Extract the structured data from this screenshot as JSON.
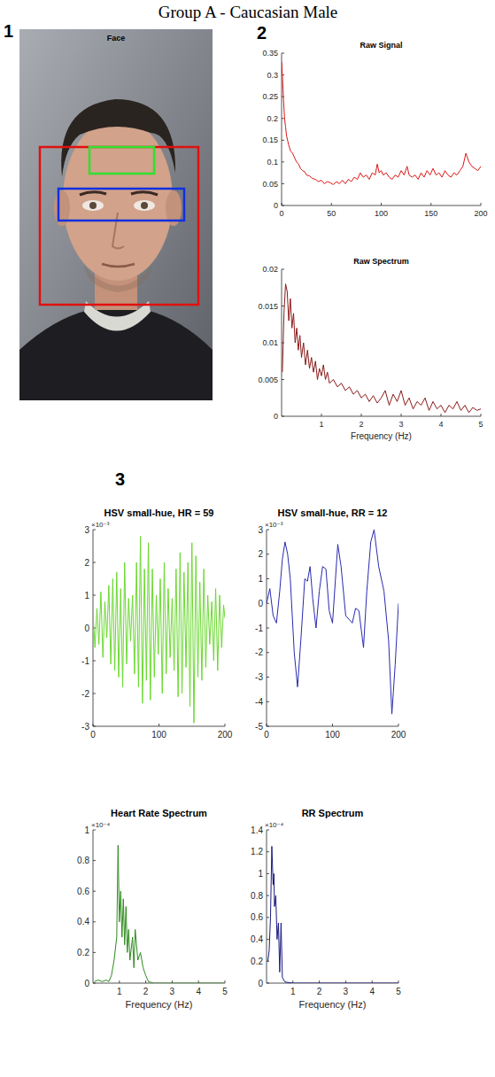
{
  "title": "Group A - Caucasian Male",
  "panel_labels": [
    "1",
    "2",
    "3"
  ],
  "face_panel": {
    "title": "Face"
  },
  "chart_data": [
    {
      "type": "line",
      "title": "Raw Signal",
      "color": "#dd1515",
      "xlim": [
        0,
        200
      ],
      "xticks": [
        0,
        50,
        100,
        150,
        200
      ],
      "ylim": [
        0,
        0.35
      ],
      "yticks": [
        0,
        0.05,
        0.1,
        0.15,
        0.2,
        0.25,
        0.3,
        0.35
      ],
      "x": [
        0,
        1,
        2,
        3,
        4,
        5,
        7,
        9,
        11,
        13,
        15,
        17,
        19,
        21,
        23,
        25,
        28,
        31,
        34,
        37,
        40,
        43,
        46,
        49,
        52,
        55,
        58,
        61,
        64,
        67,
        70,
        73,
        76,
        79,
        82,
        85,
        88,
        91,
        94,
        96,
        98,
        100,
        102,
        105,
        108,
        111,
        114,
        117,
        120,
        123,
        126,
        128,
        131,
        134,
        137,
        140,
        143,
        146,
        149,
        152,
        155,
        158,
        161,
        164,
        167,
        170,
        173,
        176,
        179,
        182,
        185,
        188,
        191,
        194,
        197,
        200
      ],
      "values": [
        0.33,
        0.29,
        0.24,
        0.2,
        0.18,
        0.16,
        0.14,
        0.125,
        0.12,
        0.11,
        0.1,
        0.095,
        0.085,
        0.08,
        0.078,
        0.07,
        0.068,
        0.062,
        0.06,
        0.055,
        0.058,
        0.05,
        0.055,
        0.052,
        0.048,
        0.055,
        0.05,
        0.058,
        0.05,
        0.06,
        0.055,
        0.065,
        0.06,
        0.075,
        0.065,
        0.07,
        0.06,
        0.075,
        0.07,
        0.095,
        0.075,
        0.08,
        0.07,
        0.075,
        0.065,
        0.06,
        0.07,
        0.065,
        0.08,
        0.07,
        0.09,
        0.07,
        0.065,
        0.07,
        0.06,
        0.075,
        0.065,
        0.08,
        0.07,
        0.085,
        0.07,
        0.075,
        0.065,
        0.08,
        0.07,
        0.065,
        0.075,
        0.07,
        0.08,
        0.09,
        0.12,
        0.1,
        0.09,
        0.085,
        0.08,
        0.09
      ]
    },
    {
      "type": "line",
      "title": "Raw Spectrum",
      "x_label": "Frequency (Hz)",
      "color": "#8b1a1a",
      "xlim": [
        0,
        5
      ],
      "xticks": [
        1,
        2,
        3,
        4,
        5
      ],
      "ylim": [
        0,
        0.02
      ],
      "yticks": [
        0,
        0.005,
        0.01,
        0.015,
        0.02
      ],
      "x": [
        0.02,
        0.06,
        0.1,
        0.14,
        0.18,
        0.22,
        0.26,
        0.3,
        0.34,
        0.38,
        0.42,
        0.46,
        0.5,
        0.55,
        0.6,
        0.65,
        0.7,
        0.75,
        0.8,
        0.85,
        0.9,
        0.95,
        1.0,
        1.05,
        1.1,
        1.15,
        1.2,
        1.3,
        1.4,
        1.5,
        1.6,
        1.7,
        1.8,
        1.9,
        2.0,
        2.1,
        2.2,
        2.3,
        2.4,
        2.5,
        2.6,
        2.7,
        2.8,
        2.9,
        3.0,
        3.1,
        3.2,
        3.3,
        3.4,
        3.5,
        3.6,
        3.7,
        3.8,
        3.9,
        4.0,
        4.1,
        4.2,
        4.3,
        4.4,
        4.5,
        4.6,
        4.7,
        4.8,
        4.9,
        5.0
      ],
      "values": [
        0.006,
        0.014,
        0.018,
        0.017,
        0.013,
        0.016,
        0.012,
        0.014,
        0.01,
        0.012,
        0.009,
        0.011,
        0.008,
        0.01,
        0.007,
        0.009,
        0.0065,
        0.008,
        0.006,
        0.0075,
        0.005,
        0.0065,
        0.0055,
        0.007,
        0.005,
        0.006,
        0.0045,
        0.005,
        0.004,
        0.0045,
        0.0035,
        0.004,
        0.003,
        0.0035,
        0.0025,
        0.003,
        0.002,
        0.0028,
        0.0018,
        0.0025,
        0.0035,
        0.0015,
        0.003,
        0.002,
        0.0035,
        0.0015,
        0.0025,
        0.001,
        0.002,
        0.0015,
        0.0025,
        0.0008,
        0.002,
        0.001,
        0.0015,
        0.0005,
        0.0015,
        0.001,
        0.002,
        0.0008,
        0.0015,
        0.0005,
        0.0012,
        0.0008,
        0.001
      ]
    },
    {
      "type": "line",
      "title": "HSV small-hue, HR = 59",
      "y_scale_label": "×10⁻³",
      "color": "#6ad830",
      "xlim": [
        0,
        200
      ],
      "xticks": [
        0,
        100,
        200
      ],
      "ylim": [
        -3,
        3
      ],
      "yticks": [
        -3,
        -2,
        -1,
        0,
        1,
        2,
        3
      ],
      "x": [
        0,
        3,
        6,
        9,
        12,
        15,
        18,
        21,
        24,
        27,
        30,
        33,
        36,
        39,
        42,
        45,
        48,
        51,
        54,
        57,
        60,
        63,
        66,
        69,
        72,
        75,
        78,
        81,
        84,
        87,
        90,
        93,
        96,
        99,
        102,
        105,
        108,
        111,
        114,
        117,
        120,
        123,
        126,
        129,
        132,
        135,
        138,
        141,
        144,
        147,
        150,
        153,
        156,
        159,
        162,
        165,
        168,
        171,
        174,
        177,
        180,
        183,
        186,
        189,
        192,
        195,
        198,
        200
      ],
      "values": [
        0.5,
        -0.6,
        0.6,
        -0.5,
        1.1,
        -0.9,
        0.8,
        -0.3,
        1.3,
        -1.1,
        1.5,
        -1.3,
        1.7,
        -1.5,
        1.2,
        -1.8,
        2.0,
        -1.1,
        0.9,
        -0.4,
        1.0,
        -1.4,
        2.0,
        -1.8,
        2.8,
        -2.3,
        1.8,
        -1.6,
        2.6,
        -2.2,
        1.8,
        -1.5,
        1.0,
        -0.8,
        1.5,
        -2.0,
        2.0,
        -1.4,
        1.2,
        -0.9,
        0.9,
        -1.3,
        1.8,
        -2.1,
        2.3,
        -2.0,
        1.7,
        -1.2,
        2.0,
        -2.4,
        2.6,
        -2.9,
        2.2,
        -1.5,
        1.4,
        -1.6,
        1.8,
        -1.2,
        1.0,
        -0.5,
        0.8,
        -1.0,
        1.2,
        -1.3,
        1.0,
        -0.6,
        0.7,
        0.3
      ]
    },
    {
      "type": "line",
      "title": "HSV small-hue, RR = 12",
      "y_scale_label": "×10⁻³",
      "color": "#2a2ab0",
      "xlim": [
        0,
        200
      ],
      "xticks": [
        0,
        100,
        200
      ],
      "ylim": [
        -5,
        3
      ],
      "yticks": [
        -5,
        -4,
        -3,
        -2,
        -1,
        0,
        1,
        2,
        3
      ],
      "x": [
        0,
        5,
        10,
        15,
        20,
        24,
        28,
        32,
        36,
        42,
        47,
        52,
        58,
        62,
        66,
        70,
        75,
        80,
        85,
        90,
        95,
        100,
        108,
        113,
        120,
        130,
        135,
        140,
        147,
        152,
        158,
        163,
        170,
        178,
        185,
        190,
        195,
        200
      ],
      "values": [
        0,
        0.6,
        -0.5,
        -0.8,
        0.5,
        1.8,
        2.5,
        2.0,
        1.0,
        -2.0,
        -3.4,
        -1.5,
        1.0,
        0.9,
        1.5,
        0.2,
        -1.0,
        0.5,
        1.5,
        1.4,
        -0.3,
        -0.8,
        2.4,
        1.5,
        -0.5,
        -0.8,
        -0.2,
        -0.3,
        -1.8,
        0.5,
        2.5,
        3.0,
        1.5,
        0.5,
        -1.5,
        -4.5,
        -2.5,
        0
      ]
    },
    {
      "type": "line",
      "title": "Heart Rate Spectrum",
      "x_label": "Frequency (Hz)",
      "y_scale_label": "×10⁻⁴",
      "color": "#2e8b1e",
      "xlim": [
        0,
        5
      ],
      "xticks": [
        1,
        2,
        3,
        4,
        5
      ],
      "ylim": [
        0,
        1
      ],
      "yticks": [
        0,
        0.2,
        0.4,
        0.6,
        0.8,
        1
      ],
      "x": [
        0.05,
        0.2,
        0.35,
        0.5,
        0.6,
        0.7,
        0.8,
        0.9,
        0.95,
        1.0,
        1.05,
        1.1,
        1.15,
        1.2,
        1.25,
        1.3,
        1.35,
        1.4,
        1.5,
        1.55,
        1.6,
        1.7,
        1.8,
        1.9,
        2.0,
        2.1,
        2.3,
        3.0,
        4.0,
        5.0
      ],
      "values": [
        0.01,
        0.02,
        0.01,
        0.02,
        0.01,
        0.05,
        0.15,
        0.3,
        0.9,
        0.4,
        0.6,
        0.3,
        0.55,
        0.25,
        0.5,
        0.2,
        0.35,
        0.15,
        0.3,
        0.1,
        0.35,
        0.15,
        0.2,
        0.1,
        0.05,
        0.01,
        0,
        0,
        0,
        0
      ]
    },
    {
      "type": "line",
      "title": "RR Spectrum",
      "x_label": "Frequency (Hz)",
      "y_scale_label": "×10⁻⁴",
      "color": "#1a1a80",
      "xlim": [
        0,
        5
      ],
      "xticks": [
        1,
        2,
        3,
        4,
        5
      ],
      "ylim": [
        0,
        1.4
      ],
      "yticks": [
        0,
        0.2,
        0.4,
        0.6,
        0.8,
        1,
        1.2,
        1.4
      ],
      "x": [
        0.05,
        0.1,
        0.15,
        0.2,
        0.25,
        0.28,
        0.3,
        0.35,
        0.4,
        0.45,
        0.5,
        0.55,
        0.6,
        0.7,
        1.0,
        2.0,
        3.0,
        4.0,
        5.0
      ],
      "values": [
        0.2,
        0.3,
        0.6,
        1.25,
        0.9,
        1.0,
        0.7,
        0.8,
        0.4,
        0.55,
        0.1,
        0.55,
        0.05,
        0.01,
        0,
        0,
        0,
        0,
        0
      ]
    }
  ]
}
